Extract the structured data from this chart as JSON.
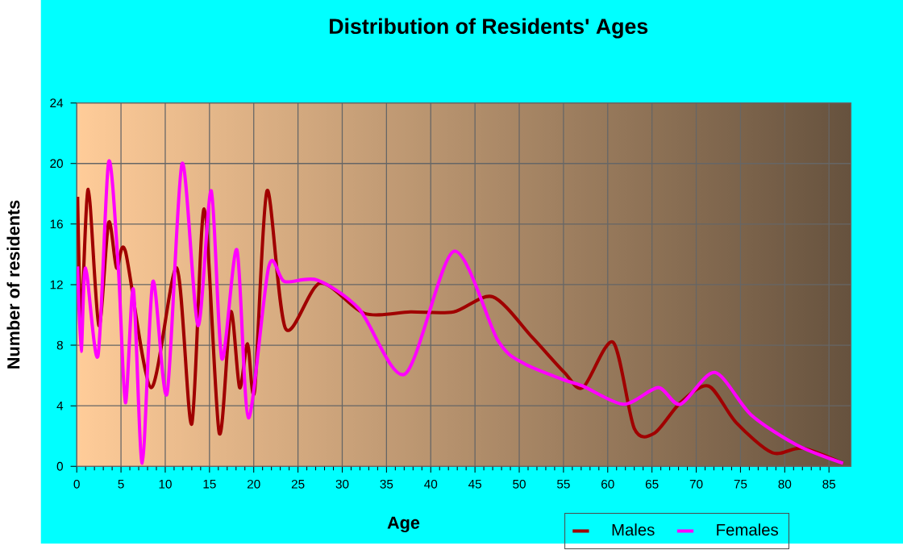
{
  "chart_data": {
    "type": "line",
    "title": "Distribution of Residents' Ages",
    "xlabel": "Age",
    "ylabel": "Number of residents",
    "xlim": [
      0,
      87.5
    ],
    "xticks": [
      0,
      5,
      10,
      15,
      20,
      25,
      30,
      35,
      40,
      45,
      50,
      55,
      60,
      65,
      70,
      75,
      80,
      85
    ],
    "ylim": [
      0,
      24
    ],
    "yticks": [
      0,
      4,
      8,
      12,
      16,
      20,
      24
    ],
    "grid": true,
    "legend": "bottom right",
    "marker": "none",
    "line_style": "solid",
    "series": [
      {
        "name": "Males",
        "color": "#a00000",
        "x": [
          0.1,
          0.5,
          1.3,
          2.5,
          3.6,
          4.5,
          5.5,
          8.4,
          11.3,
          13.0,
          14.4,
          16.1,
          17.4,
          18.4,
          19.3,
          20.1,
          21.5,
          23.6,
          27.5,
          32.5,
          37.7,
          42.6,
          47.0,
          51.5,
          55.1,
          57.2,
          60.6,
          63.0,
          65.3,
          68.2,
          71.4,
          74.5,
          78.6,
          82.0,
          86.6
        ],
        "values": [
          17.8,
          9.7,
          18.3,
          9.3,
          16.1,
          13.1,
          14.2,
          5.2,
          13.1,
          2.8,
          17.0,
          2.2,
          10.2,
          5.2,
          8.1,
          5.0,
          18.2,
          9.1,
          12.1,
          10.1,
          10.2,
          10.2,
          11.2,
          8.5,
          6.2,
          5.2,
          8.2,
          2.5,
          2.2,
          4.2,
          5.3,
          2.9,
          0.9,
          1.2,
          0.2
        ]
      },
      {
        "name": "Females",
        "color": "#ff00ff",
        "x": [
          0.1,
          0.5,
          1.0,
          2.4,
          3.6,
          4.7,
          5.5,
          6.4,
          7.4,
          8.6,
          10.2,
          11.9,
          13.7,
          15.2,
          16.4,
          18.1,
          19.4,
          21.7,
          23.5,
          27.2,
          31.9,
          37.1,
          42.6,
          47.6,
          50.5,
          55.1,
          57.2,
          61.8,
          65.7,
          68.2,
          72.1,
          76.2,
          81.4,
          86.6
        ],
        "values": [
          13.2,
          7.6,
          13.1,
          7.3,
          20.1,
          13.1,
          4.2,
          11.7,
          0.2,
          12.2,
          4.8,
          20.0,
          9.3,
          18.2,
          7.1,
          14.3,
          3.2,
          13.2,
          12.2,
          12.3,
          10.4,
          6.1,
          14.2,
          8.3,
          6.8,
          5.7,
          5.3,
          4.1,
          5.2,
          4.1,
          6.2,
          3.4,
          1.4,
          0.2
        ]
      }
    ]
  }
}
